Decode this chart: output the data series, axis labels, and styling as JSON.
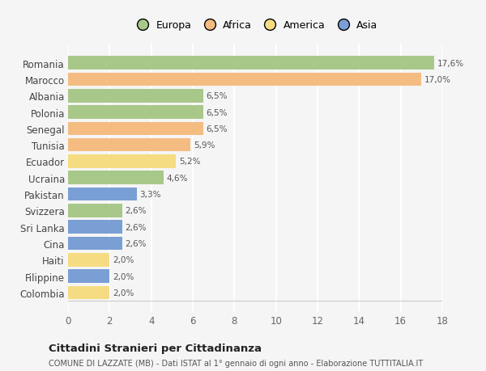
{
  "countries": [
    "Romania",
    "Marocco",
    "Albania",
    "Polonia",
    "Senegal",
    "Tunisia",
    "Ecuador",
    "Ucraina",
    "Pakistan",
    "Svizzera",
    "Sri Lanka",
    "Cina",
    "Haiti",
    "Filippine",
    "Colombia"
  ],
  "values": [
    17.6,
    17.0,
    6.5,
    6.5,
    6.5,
    5.9,
    5.2,
    4.6,
    3.3,
    2.6,
    2.6,
    2.6,
    2.0,
    2.0,
    2.0
  ],
  "labels": [
    "17,6%",
    "17,0%",
    "6,5%",
    "6,5%",
    "6,5%",
    "5,9%",
    "5,2%",
    "4,6%",
    "3,3%",
    "2,6%",
    "2,6%",
    "2,6%",
    "2,0%",
    "2,0%",
    "2,0%"
  ],
  "colors": [
    "#a8c88a",
    "#f5bc82",
    "#a8c88a",
    "#a8c88a",
    "#f5bc82",
    "#f5bc82",
    "#f5dc82",
    "#a8c88a",
    "#7a9fd4",
    "#a8c88a",
    "#7a9fd4",
    "#7a9fd4",
    "#f5dc82",
    "#7a9fd4",
    "#f5dc82"
  ],
  "legend_labels": [
    "Europa",
    "Africa",
    "America",
    "Asia"
  ],
  "legend_colors": [
    "#a8c88a",
    "#f5bc82",
    "#f5dc82",
    "#7a9fd4"
  ],
  "title": "Cittadini Stranieri per Cittadinanza",
  "subtitle": "COMUNE DI LAZZATE (MB) - Dati ISTAT al 1° gennaio di ogni anno - Elaborazione TUTTITALIA.IT",
  "xlim": [
    0,
    18
  ],
  "xticks": [
    0,
    2,
    4,
    6,
    8,
    10,
    12,
    14,
    16,
    18
  ],
  "bg_color": "#f5f5f5",
  "grid_color": "#ffffff",
  "bar_height": 0.82
}
